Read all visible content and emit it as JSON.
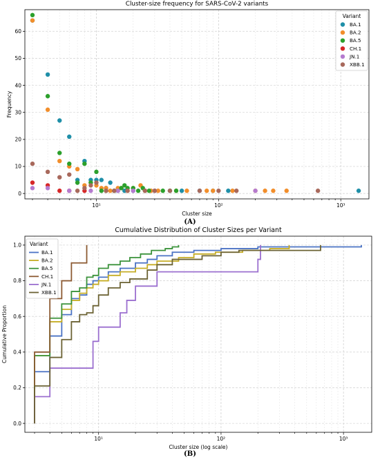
{
  "figure": {
    "label_a": "(A)",
    "label_b": "(B)"
  },
  "chart_data": [
    {
      "type": "scatter",
      "title": "Cluster-size frequency for SARS-CoV-2 variants",
      "xlabel": "Cluster size",
      "ylabel": "Frequency",
      "xscale": "log",
      "xlim": [
        2.6,
        1700
      ],
      "ylim": [
        -2,
        68
      ],
      "yticks": [
        0,
        10,
        20,
        30,
        40,
        50,
        60
      ],
      "xticks": [
        10,
        100,
        1000
      ],
      "xtick_labels": [
        "10¹",
        "10²",
        "10³"
      ],
      "grid": true,
      "legend": {
        "title": "Variant",
        "position": "top-right"
      },
      "series": [
        {
          "name": "BA.1",
          "color": "#1f8fa8",
          "points": [
            [
              3,
              64
            ],
            [
              4,
              44
            ],
            [
              5,
              27
            ],
            [
              6,
              21
            ],
            [
              7,
              5
            ],
            [
              8,
              12
            ],
            [
              9,
              5
            ],
            [
              10,
              5
            ],
            [
              11,
              5
            ],
            [
              12,
              2
            ],
            [
              13,
              4
            ],
            [
              14,
              1
            ],
            [
              15,
              1
            ],
            [
              17,
              1
            ],
            [
              20,
              1
            ],
            [
              25,
              1
            ],
            [
              30,
              1
            ],
            [
              40,
              1
            ],
            [
              50,
              1
            ],
            [
              70,
              1
            ],
            [
              90,
              1
            ],
            [
              120,
              1
            ],
            [
              1400,
              1
            ]
          ]
        },
        {
          "name": "BA.2",
          "color": "#f28e2b",
          "points": [
            [
              3,
              64
            ],
            [
              4,
              31
            ],
            [
              5,
              12
            ],
            [
              6,
              10
            ],
            [
              7,
              9
            ],
            [
              8,
              3
            ],
            [
              9,
              4
            ],
            [
              10,
              3
            ],
            [
              11,
              2
            ],
            [
              12,
              2
            ],
            [
              13,
              1
            ],
            [
              15,
              2
            ],
            [
              16,
              2
            ],
            [
              18,
              1
            ],
            [
              20,
              2
            ],
            [
              23,
              3
            ],
            [
              25,
              1
            ],
            [
              28,
              1
            ],
            [
              32,
              1
            ],
            [
              45,
              1
            ],
            [
              55,
              1
            ],
            [
              80,
              1
            ],
            [
              90,
              1
            ],
            [
              130,
              1
            ],
            [
              200,
              1
            ],
            [
              240,
              1
            ],
            [
              280,
              1
            ],
            [
              360,
              1
            ]
          ]
        },
        {
          "name": "BA.5",
          "color": "#2ca02c",
          "points": [
            [
              3,
              66
            ],
            [
              4,
              36
            ],
            [
              5,
              15
            ],
            [
              6,
              11
            ],
            [
              7,
              4
            ],
            [
              8,
              11
            ],
            [
              9,
              4
            ],
            [
              10,
              8
            ],
            [
              11,
              1
            ],
            [
              12,
              1
            ],
            [
              14,
              1
            ],
            [
              16,
              2
            ],
            [
              17,
              3
            ],
            [
              18,
              2
            ],
            [
              20,
              2
            ],
            [
              22,
              1
            ],
            [
              24,
              2
            ],
            [
              27,
              1
            ],
            [
              35,
              1
            ],
            [
              40,
              1
            ],
            [
              45,
              1
            ]
          ]
        },
        {
          "name": "CH.1",
          "color": "#d62728",
          "points": [
            [
              3,
              4
            ],
            [
              4,
              3
            ],
            [
              5,
              1
            ],
            [
              6,
              1
            ],
            [
              8,
              1
            ]
          ]
        },
        {
          "name": "JN.1",
          "color": "#b57bcf",
          "points": [
            [
              3,
              2
            ],
            [
              4,
              2
            ],
            [
              6,
              1
            ],
            [
              9,
              1
            ],
            [
              15,
              1
            ],
            [
              20,
              1
            ],
            [
              30,
              1
            ],
            [
              200,
              1
            ]
          ]
        },
        {
          "name": "XBB.1",
          "color": "#a8695c",
          "points": [
            [
              3,
              11
            ],
            [
              4,
              8
            ],
            [
              5,
              6
            ],
            [
              6,
              7
            ],
            [
              7,
              1
            ],
            [
              8,
              2
            ],
            [
              9,
              3
            ],
            [
              10,
              4
            ],
            [
              12,
              1
            ],
            [
              14,
              1
            ],
            [
              18,
              1
            ],
            [
              25,
              1
            ],
            [
              30,
              1
            ],
            [
              40,
              1
            ],
            [
              70,
              1
            ],
            [
              100,
              1
            ],
            [
              140,
              1
            ],
            [
              650,
              1
            ]
          ]
        }
      ]
    },
    {
      "type": "line",
      "step": true,
      "title": "Cumulative Distribution of Cluster Sizes per Variant",
      "xlabel": "Cluster size (log scale)",
      "ylabel": "Cumulative Proportion",
      "xscale": "log",
      "xlim": [
        2.5,
        1700
      ],
      "ylim": [
        -0.05,
        1.05
      ],
      "yticks": [
        0.0,
        0.2,
        0.4,
        0.6,
        0.8,
        1.0
      ],
      "ytick_labels": [
        "0.0",
        "0.2",
        "0.4",
        "0.6",
        "0.8",
        "1.0"
      ],
      "xticks": [
        10,
        100,
        1000
      ],
      "xtick_labels": [
        "10¹",
        "10²",
        "10³"
      ],
      "grid": true,
      "legend": {
        "title": "Variant",
        "position": "top-left"
      },
      "series": [
        {
          "name": "BA.1",
          "color": "#4a72c4",
          "points": [
            [
              3,
              0.29
            ],
            [
              4,
              0.49
            ],
            [
              5,
              0.61
            ],
            [
              6,
              0.7
            ],
            [
              7,
              0.72
            ],
            [
              8,
              0.78
            ],
            [
              9,
              0.8
            ],
            [
              10,
              0.82
            ],
            [
              12,
              0.85
            ],
            [
              15,
              0.87
            ],
            [
              20,
              0.9
            ],
            [
              25,
              0.92
            ],
            [
              30,
              0.94
            ],
            [
              40,
              0.96
            ],
            [
              60,
              0.97
            ],
            [
              100,
              0.98
            ],
            [
              200,
              0.99
            ],
            [
              1400,
              1.0
            ]
          ]
        },
        {
          "name": "BA.2",
          "color": "#c6ad25",
          "points": [
            [
              3,
              0.38
            ],
            [
              4,
              0.57
            ],
            [
              5,
              0.64
            ],
            [
              6,
              0.69
            ],
            [
              7,
              0.73
            ],
            [
              8,
              0.76
            ],
            [
              9,
              0.78
            ],
            [
              10,
              0.8
            ],
            [
              12,
              0.83
            ],
            [
              15,
              0.85
            ],
            [
              20,
              0.87
            ],
            [
              25,
              0.89
            ],
            [
              30,
              0.91
            ],
            [
              45,
              0.93
            ],
            [
              60,
              0.95
            ],
            [
              90,
              0.96
            ],
            [
              150,
              0.97
            ],
            [
              250,
              0.98
            ],
            [
              360,
              1.0
            ]
          ]
        },
        {
          "name": "BA.5",
          "color": "#3a923a",
          "points": [
            [
              3,
              0.38
            ],
            [
              4,
              0.59
            ],
            [
              5,
              0.67
            ],
            [
              6,
              0.74
            ],
            [
              7,
              0.76
            ],
            [
              8,
              0.82
            ],
            [
              9,
              0.83
            ],
            [
              10,
              0.87
            ],
            [
              12,
              0.89
            ],
            [
              15,
              0.91
            ],
            [
              18,
              0.93
            ],
            [
              22,
              0.95
            ],
            [
              27,
              0.97
            ],
            [
              35,
              0.98
            ],
            [
              40,
              0.99
            ],
            [
              45,
              1.0
            ]
          ]
        },
        {
          "name": "CH.1",
          "color": "#8c5a32",
          "points": [
            [
              3,
              0.4
            ],
            [
              4,
              0.7
            ],
            [
              5,
              0.8
            ],
            [
              6,
              0.9
            ],
            [
              8,
              1.0
            ]
          ]
        },
        {
          "name": "JN.1",
          "color": "#9b6fcf",
          "points": [
            [
              3,
              0.15
            ],
            [
              4,
              0.31
            ],
            [
              9,
              0.46
            ],
            [
              10,
              0.54
            ],
            [
              15,
              0.62
            ],
            [
              17,
              0.69
            ],
            [
              20,
              0.77
            ],
            [
              30,
              0.85
            ],
            [
              200,
              0.92
            ],
            [
              210,
              1.0
            ]
          ]
        },
        {
          "name": "XBB.1",
          "color": "#6b6233",
          "points": [
            [
              3,
              0.21
            ],
            [
              4,
              0.37
            ],
            [
              5,
              0.47
            ],
            [
              6,
              0.57
            ],
            [
              7,
              0.61
            ],
            [
              8,
              0.62
            ],
            [
              9,
              0.66
            ],
            [
              10,
              0.72
            ],
            [
              12,
              0.76
            ],
            [
              15,
              0.79
            ],
            [
              18,
              0.81
            ],
            [
              25,
              0.86
            ],
            [
              30,
              0.89
            ],
            [
              40,
              0.92
            ],
            [
              70,
              0.94
            ],
            [
              100,
              0.96
            ],
            [
              140,
              0.97
            ],
            [
              650,
              1.0
            ]
          ]
        }
      ]
    }
  ]
}
